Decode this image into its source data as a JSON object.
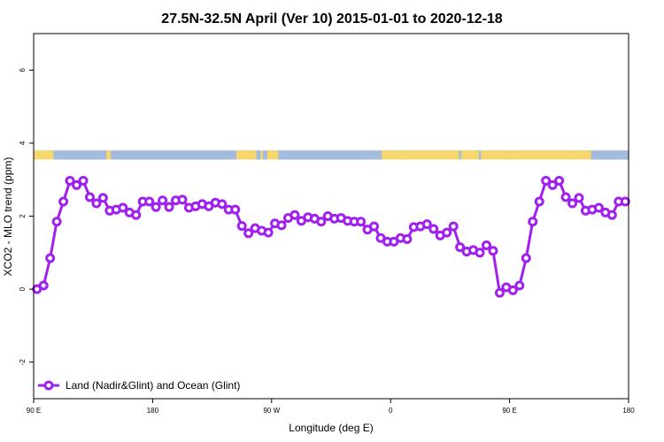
{
  "chart_data": {
    "type": "line",
    "title": "27.5N-32.5N April (Ver 10)   2015-01-01 to 2020-12-18",
    "xlabel": "Longitude (deg E)",
    "ylabel": "XCO2 - MLO trend (ppm)",
    "xlim": [
      -90,
      180
    ],
    "ylim": [
      -3,
      7
    ],
    "x_ticks": [
      {
        "value": -90,
        "label": "90 E"
      },
      {
        "value": -36,
        "label": "180"
      },
      {
        "value": 18,
        "label": "90 W"
      },
      {
        "value": 72,
        "label": "0"
      },
      {
        "value": 126,
        "label": "90 E"
      },
      {
        "value": 180,
        "label": "180"
      }
    ],
    "y_ticks": [
      -2,
      0,
      2,
      4,
      6
    ],
    "legend": {
      "label": "Land (Nadir&Glint) and Ocean (Glint)",
      "position": "bottom-left"
    },
    "series": [
      {
        "name": "Land (Nadir&Glint) and Ocean (Glint)",
        "color": "#a020f0",
        "x": [
          -88.5,
          -85.5,
          -82.5,
          -79.5,
          -76.5,
          -73.5,
          -70.5,
          -67.5,
          -64.5,
          -61.5,
          -58.5,
          -55.5,
          -52.5,
          -49.5,
          -46.5,
          -43.5,
          -40.5,
          -37.5,
          -34.5,
          -31.5,
          -28.5,
          -25.5,
          -22.5,
          -19.5,
          -16.5,
          -13.5,
          -10.5,
          -7.5,
          -4.5,
          -1.5,
          1.5,
          4.5,
          7.5,
          10.5,
          13.5,
          16.5,
          19.5,
          22.5,
          25.5,
          28.5,
          31.5,
          34.5,
          37.5,
          40.5,
          43.5,
          46.5,
          49.5,
          52.5,
          55.5,
          58.5,
          61.5,
          64.5,
          67.5,
          70.5,
          73.5,
          76.5,
          79.5,
          82.5,
          85.5,
          88.5,
          91.5,
          94.5,
          97.5,
          100.5,
          103.5,
          106.5,
          109.5,
          112.5,
          115.5,
          118.5,
          121.5,
          124.5,
          127.5,
          130.5,
          133.5,
          136.5,
          139.5,
          142.5,
          145.5,
          148.5,
          151.5,
          154.5,
          157.5,
          160.5,
          163.5,
          166.5,
          169.5,
          172.5,
          175.5,
          178.5
        ],
        "y": [
          0.0,
          0.1,
          0.85,
          1.85,
          2.4,
          2.97,
          2.85,
          2.97,
          2.52,
          2.35,
          2.5,
          2.15,
          2.18,
          2.23,
          2.1,
          2.03,
          2.4,
          2.4,
          2.25,
          2.43,
          2.25,
          2.43,
          2.45,
          2.23,
          2.27,
          2.33,
          2.27,
          2.37,
          2.33,
          2.18,
          2.18,
          1.73,
          1.53,
          1.67,
          1.6,
          1.55,
          1.8,
          1.75,
          1.95,
          2.03,
          1.87,
          1.97,
          1.93,
          1.85,
          2.0,
          1.93,
          1.95,
          1.87,
          1.85,
          1.85,
          1.63,
          1.72,
          1.4,
          1.3,
          1.3,
          1.4,
          1.37,
          1.7,
          1.72,
          1.78,
          1.65,
          1.47,
          1.55,
          1.72,
          1.15,
          1.03,
          1.07,
          1.0,
          1.2,
          1.05,
          -0.1,
          0.05,
          -0.03,
          0.1,
          0.85,
          1.85,
          2.4,
          2.97,
          2.85,
          2.97,
          2.52,
          2.35,
          2.5,
          2.15,
          2.18,
          2.23,
          2.1,
          2.03,
          2.4,
          2.4
        ]
      }
    ],
    "surface_band": {
      "y_range": [
        3.55,
        3.8
      ],
      "colors": {
        "land": "#f5d76e",
        "ocean": "#a3bbdc"
      },
      "land_segments": [
        [
          -90,
          -81
        ],
        [
          -57,
          -55
        ],
        [
          2,
          8
        ],
        [
          8,
          11
        ],
        [
          13,
          14
        ],
        [
          16,
          21
        ],
        [
          68,
          75
        ],
        [
          75,
          78
        ],
        [
          78,
          103
        ],
        [
          104,
          112
        ],
        [
          113,
          125
        ],
        [
          125,
          127
        ],
        [
          127,
          134
        ],
        [
          134,
          136
        ],
        [
          136,
          153
        ],
        [
          153,
          160
        ],
        [
          160,
          163
        ]
      ]
    }
  }
}
